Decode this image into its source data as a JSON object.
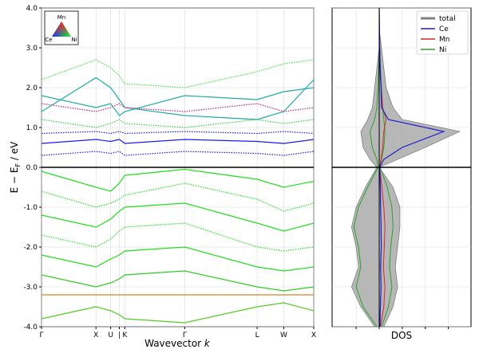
{
  "chart_data": [
    {
      "type": "line",
      "subtype": "band-structure",
      "xlabel": "Wavevector k",
      "ylabel": "E − E_F / eV",
      "ylim": [
        -4.0,
        4.0
      ],
      "y_ticks": [
        "-4.0",
        "-3.0",
        "-2.0",
        "-1.0",
        "0.0",
        "1.0",
        "2.0",
        "3.0",
        "4.0"
      ],
      "k_points": [
        "Γ",
        "X",
        "U",
        "|",
        "K",
        "Γ",
        "L",
        "W",
        "X"
      ],
      "k_positions": [
        0,
        1,
        1.27,
        1.43,
        1.53,
        2.63,
        3.96,
        4.45,
        5.0
      ],
      "fermi_level": 0.0,
      "composition_triangle": {
        "top": "Mn",
        "left": "Ce",
        "right": "Ni"
      },
      "band_colors": {
        "Ce": "#1010ee",
        "Mn": "#ee2020",
        "Ni": "#10dd10"
      },
      "bands": [
        {
          "color": "#22dd22",
          "style": "solid",
          "y": [
            -0.1,
            -0.5,
            -0.6,
            -0.4,
            -0.2,
            -0.05,
            -0.3,
            -0.5,
            -0.35
          ]
        },
        {
          "color": "#22dd22",
          "style": "dotted",
          "y": [
            -0.6,
            -1.0,
            -0.9,
            -0.8,
            -0.7,
            -0.4,
            -0.8,
            -1.1,
            -0.9
          ]
        },
        {
          "color": "#22dd22",
          "style": "solid",
          "y": [
            -1.2,
            -1.5,
            -1.3,
            -1.1,
            -1.0,
            -0.9,
            -1.4,
            -1.6,
            -1.4
          ]
        },
        {
          "color": "#22dd22",
          "style": "dotted",
          "y": [
            -1.7,
            -2.0,
            -1.8,
            -1.6,
            -1.5,
            -1.4,
            -2.0,
            -2.1,
            -2.0
          ]
        },
        {
          "color": "#22dd22",
          "style": "solid",
          "y": [
            -2.2,
            -2.5,
            -2.3,
            -2.2,
            -2.1,
            -2.0,
            -2.5,
            -2.6,
            -2.5
          ]
        },
        {
          "color": "#33cc22",
          "style": "solid",
          "y": [
            -2.7,
            -3.0,
            -2.9,
            -2.8,
            -2.7,
            -2.6,
            -3.0,
            -3.1,
            -3.0
          ]
        },
        {
          "color": "#cc8822",
          "style": "solid",
          "y": [
            -3.2,
            -3.2,
            -3.2,
            -3.2,
            -3.2,
            -3.2,
            -3.2,
            -3.2,
            -3.2
          ]
        },
        {
          "color": "#55cc22",
          "style": "solid",
          "y": [
            -3.8,
            -3.5,
            -3.6,
            -3.7,
            -3.8,
            -3.9,
            -3.5,
            -3.4,
            -3.6
          ]
        },
        {
          "color": "#1a1aee",
          "style": "dotted",
          "y": [
            0.3,
            0.4,
            0.35,
            0.4,
            0.3,
            0.4,
            0.35,
            0.3,
            0.4
          ]
        },
        {
          "color": "#1a1aee",
          "style": "solid",
          "y": [
            0.6,
            0.7,
            0.65,
            0.7,
            0.6,
            0.7,
            0.65,
            0.6,
            0.7
          ]
        },
        {
          "color": "#1a1aee",
          "style": "dotted",
          "y": [
            0.85,
            0.9,
            0.85,
            0.9,
            0.85,
            0.9,
            0.85,
            0.9,
            0.85
          ]
        },
        {
          "color": "#22aaaa",
          "style": "solid",
          "y": [
            1.8,
            1.5,
            1.6,
            1.3,
            1.4,
            1.8,
            1.7,
            1.9,
            2.0
          ]
        },
        {
          "color": "#22aaaa",
          "style": "solid",
          "y": [
            1.4,
            2.25,
            2.0,
            1.7,
            1.5,
            1.3,
            1.2,
            1.4,
            2.2
          ]
        },
        {
          "color": "#bb2277",
          "style": "dotted",
          "y": [
            1.6,
            1.4,
            1.5,
            1.6,
            1.5,
            1.4,
            1.6,
            1.4,
            1.5
          ]
        },
        {
          "color": "#44dd44",
          "style": "dotted",
          "y": [
            2.2,
            2.7,
            2.5,
            2.3,
            2.1,
            2.0,
            2.4,
            2.6,
            2.7
          ]
        },
        {
          "color": "#33cc44",
          "style": "dotted",
          "y": [
            1.2,
            1.0,
            1.1,
            1.2,
            1.1,
            1.0,
            1.2,
            1.1,
            1.2
          ]
        }
      ]
    },
    {
      "type": "line",
      "subtype": "density-of-states",
      "xlabel": "DOS",
      "ylim": [
        -4.0,
        4.0
      ],
      "legend": [
        "total",
        "Ce",
        "Mn",
        "Ni"
      ],
      "legend_position": "top-right",
      "series_colors": {
        "total": "#808080",
        "Ce": "#1f1fcf",
        "Mn": "#d62728",
        "Ni": "#2ca02c"
      },
      "energy": [
        -4.0,
        -3.5,
        -3.0,
        -2.5,
        -2.0,
        -1.5,
        -1.0,
        -0.5,
        0.0,
        0.2,
        0.5,
        0.9,
        1.2,
        1.5,
        2.0,
        2.5,
        3.0,
        3.5,
        4.0
      ],
      "total_min": [
        -2,
        -8,
        -12,
        -9,
        -10,
        -12,
        -10,
        -6,
        -1,
        -4,
        -7,
        -8,
        -5,
        -3,
        -2,
        -1,
        0,
        0,
        0
      ],
      "total_max": [
        2,
        6,
        8,
        7,
        8,
        9,
        9,
        6,
        0,
        8,
        20,
        35,
        10,
        6,
        3,
        2,
        1,
        0,
        0
      ],
      "Ce": [
        0.3,
        0.5,
        0.8,
        0.6,
        0.9,
        0.8,
        0.6,
        0.5,
        0.2,
        2,
        10,
        28,
        4,
        1,
        0.8,
        0.4,
        0.2,
        0.1,
        0
      ],
      "Mn": [
        0.5,
        2,
        2.5,
        1.8,
        2.2,
        2.5,
        2.0,
        1.2,
        0.2,
        0.8,
        1.5,
        2,
        3,
        1.5,
        0.8,
        0.4,
        0.2,
        0.1,
        0
      ],
      "Ni": [
        1,
        4,
        5.5,
        4.5,
        5.0,
        6.0,
        5.5,
        3.5,
        0.4,
        1,
        2,
        2.5,
        2,
        1.5,
        1,
        0.5,
        0.2,
        0.1,
        0
      ],
      "Ni_left": [
        -1,
        -7,
        -10,
        -8,
        -9,
        -11,
        -9,
        -5,
        -0.5,
        -1,
        -3,
        -4,
        -2,
        -1,
        -0.5,
        -0.2,
        0,
        0,
        0
      ]
    }
  ]
}
